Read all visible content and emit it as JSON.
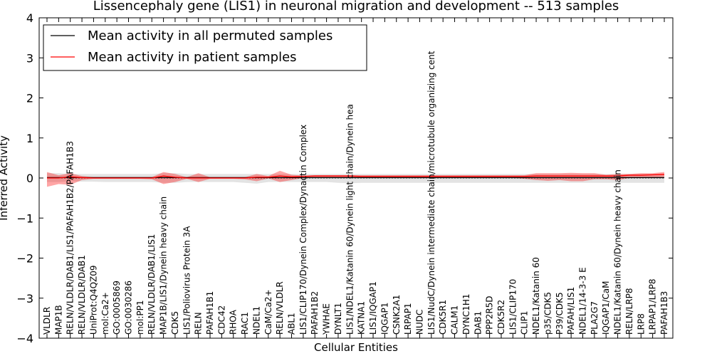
{
  "chart_data": {
    "type": "line",
    "title": "Lissencephaly gene (LIS1) in neuronal migration and development -- 513 samples",
    "xlabel": "Cellular Entities",
    "ylabel": "Inferred Activity",
    "ylim": [
      -4,
      4
    ],
    "yticks": [
      "−4",
      "−3",
      "−2",
      "−1",
      "0",
      "1",
      "2",
      "3",
      "4"
    ],
    "legend_position": "top-left",
    "categories": [
      "VLDLR",
      "MAP1B",
      "RELN/VLDLR/DAB1/LIS1/PAFAH1B2/PAFAH1B3",
      "RELN/VLDLR/DAB1",
      "UniProt:Q4QZ09",
      "mol:Ca2+",
      "GO:0005869",
      "GO:0030286",
      "mol:PP1",
      "RELN/VLDLR/DAB1/LIS1",
      "MAP1B/LIS1/Dynein heavy chain",
      "CDK5",
      "LIS1/Poliovirus Protein 3A",
      "RELN",
      "PAFAH1B1",
      "CDC42",
      "RHOA",
      "RAC1",
      "NDEL1",
      "CaM/Ca2+",
      "RELN/VLDLR",
      "ABL1",
      "LIS1/CLIP170/Dynein Complex/Dynactin Complex",
      "PAFAH1B2",
      "YWHAE",
      "DYNLT1",
      "LIS1/NDEL1/Katanin 60/Dynein light chain/Dynein hea",
      "KATNA1",
      "LIS1/IQGAP1",
      "IQGAP1",
      "CSNK2A1",
      "LRPAP1",
      "NUDC",
      "LIS1/NudC/Dynein intermediate chain/microtubule organizing cent",
      "CDK5R1",
      "CALM1",
      "DYNC1H1",
      "DAB1",
      "PPP2R5D",
      "CDK5R2",
      "LIS1/CLIP170",
      "CLIP1",
      "NDEL1/Katanin 60",
      "p35/CDK5",
      "P39/CDK5",
      "PAFAH/LIS1",
      "NDEL1/14-3-3 E",
      "PLA2G7",
      "IQGAP1/CaM",
      "NDEL1/Katanin 60/Dynein heavy chain",
      "RELN/LRP8",
      "LRP8",
      "LRPAP1/LRP8",
      "PAFAH1B3"
    ],
    "series": [
      {
        "name": "Mean activity in all permuted samples",
        "color": "#000000",
        "values": [
          0.01,
          0.01,
          0.01,
          0.01,
          0.01,
          0.01,
          0.01,
          0.01,
          0.01,
          0.01,
          0.01,
          0.01,
          0.01,
          0.01,
          0.01,
          0.01,
          0.01,
          0.01,
          0.01,
          0.01,
          0.01,
          0.01,
          0.01,
          0.01,
          0.01,
          0.01,
          0.01,
          0.01,
          0.01,
          0.01,
          0.01,
          0.01,
          0.01,
          0.01,
          0.01,
          0.01,
          0.01,
          0.01,
          0.01,
          0.01,
          0.01,
          0.01,
          0.01,
          0.01,
          0.01,
          0.01,
          0.01,
          0.01,
          0.01,
          0.01,
          0.01,
          0.01,
          0.01,
          0.01
        ],
        "band_low": [
          -0.1,
          -0.1,
          -0.08,
          -0.09,
          -0.09,
          -0.1,
          -0.1,
          -0.1,
          -0.1,
          -0.1,
          -0.12,
          -0.12,
          -0.1,
          -0.1,
          -0.1,
          -0.1,
          -0.1,
          -0.12,
          -0.14,
          -0.1,
          -0.1,
          -0.1,
          -0.1,
          -0.1,
          -0.1,
          -0.12,
          -0.13,
          -0.12,
          -0.12,
          -0.12,
          -0.12,
          -0.12,
          -0.12,
          -0.12,
          -0.12,
          -0.12,
          -0.12,
          -0.12,
          -0.12,
          -0.12,
          -0.12,
          -0.12,
          -0.12,
          -0.12,
          -0.12,
          -0.12,
          -0.12,
          -0.12,
          -0.12,
          -0.12,
          -0.12,
          -0.12,
          -0.12,
          -0.12
        ],
        "band_high": [
          0.12,
          0.12,
          0.1,
          0.1,
          0.1,
          0.1,
          0.1,
          0.1,
          0.1,
          0.1,
          0.12,
          0.12,
          0.1,
          0.1,
          0.1,
          0.1,
          0.1,
          0.1,
          0.1,
          0.1,
          0.1,
          0.1,
          0.1,
          0.1,
          0.1,
          0.1,
          0.1,
          0.1,
          0.1,
          0.1,
          0.1,
          0.1,
          0.1,
          0.1,
          0.1,
          0.1,
          0.1,
          0.1,
          0.1,
          0.1,
          0.1,
          0.1,
          0.1,
          0.1,
          0.1,
          0.1,
          0.1,
          0.1,
          0.1,
          0.1,
          0.1,
          0.1,
          0.1,
          0.1
        ]
      },
      {
        "name": "Mean activity in patient samples",
        "color": "#ff0000",
        "values": [
          0.0,
          0.0,
          0.03,
          0.01,
          0.0,
          0.0,
          0.0,
          0.0,
          0.0,
          0.0,
          0.05,
          0.02,
          0.0,
          0.0,
          0.0,
          0.0,
          0.0,
          0.0,
          0.02,
          0.02,
          0.05,
          0.03,
          0.04,
          0.05,
          0.05,
          0.05,
          0.05,
          0.04,
          0.04,
          0.04,
          0.04,
          0.04,
          0.04,
          0.04,
          0.04,
          0.04,
          0.04,
          0.04,
          0.04,
          0.04,
          0.04,
          0.04,
          0.05,
          0.05,
          0.05,
          0.05,
          0.05,
          0.05,
          0.05,
          0.05,
          0.07,
          0.07,
          0.08,
          0.09
        ],
        "band_low": [
          -0.22,
          -0.15,
          -0.17,
          -0.05,
          -0.02,
          -0.02,
          -0.02,
          -0.02,
          -0.02,
          -0.03,
          -0.15,
          -0.1,
          -0.02,
          -0.1,
          -0.02,
          -0.02,
          -0.02,
          -0.03,
          -0.08,
          -0.01,
          -0.1,
          -0.05,
          0.0,
          0.0,
          0.0,
          0.0,
          0.0,
          0.0,
          0.0,
          0.0,
          0.0,
          0.0,
          0.0,
          0.0,
          0.0,
          0.0,
          0.0,
          0.0,
          0.0,
          0.0,
          0.0,
          -0.02,
          -0.05,
          -0.07,
          -0.05,
          -0.08,
          -0.08,
          -0.03,
          -0.03,
          -0.05,
          0.0,
          0.02,
          0.01,
          0.03
        ],
        "band_high": [
          0.15,
          0.07,
          0.12,
          0.05,
          0.02,
          0.02,
          0.02,
          0.02,
          0.02,
          0.02,
          0.15,
          0.1,
          0.02,
          0.12,
          0.02,
          0.02,
          0.02,
          0.02,
          0.1,
          0.05,
          0.18,
          0.08,
          0.06,
          0.07,
          0.07,
          0.07,
          0.07,
          0.07,
          0.07,
          0.07,
          0.07,
          0.07,
          0.07,
          0.07,
          0.07,
          0.07,
          0.07,
          0.07,
          0.07,
          0.07,
          0.07,
          0.07,
          0.12,
          0.12,
          0.12,
          0.13,
          0.12,
          0.12,
          0.08,
          0.1,
          0.1,
          0.12,
          0.12,
          0.15
        ]
      }
    ]
  }
}
